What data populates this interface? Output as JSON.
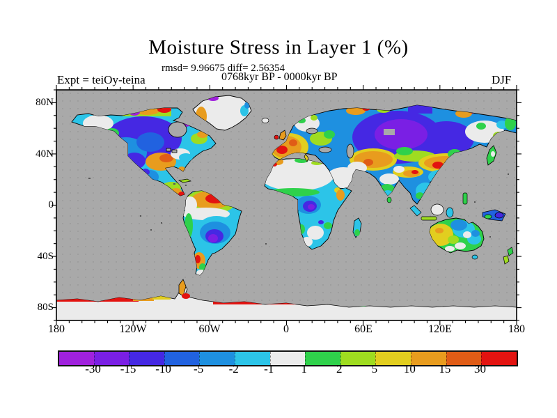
{
  "title": "Moisture Stress in Layer 1 (%)",
  "stats_line": "rmsd= 9.96675 diff= 2.56354",
  "period_line": "0768kyr BP - 0000kyr BP",
  "experiment_label": "Expt = teiOy-teina",
  "season_label": "DJF",
  "map": {
    "ocean_color": "#a9a9a9",
    "ice_color": "#ebebeb",
    "coastline_color": "#000000"
  },
  "axes": {
    "lat_labels": [
      "80N",
      "40N",
      "0",
      "40S",
      "80S"
    ],
    "lon_labels": [
      "180",
      "120W",
      "60W",
      "0",
      "60E",
      "120E",
      "180"
    ]
  },
  "colorbar": {
    "labels": [
      "-30",
      "-15",
      "-10",
      "-5",
      "-2",
      "-1",
      "1",
      "2",
      "5",
      "10",
      "15",
      "30"
    ],
    "colors": [
      "#a021dd",
      "#7a1fe4",
      "#4528e3",
      "#2162e0",
      "#1e90e0",
      "#2cc4e8",
      "#ebebeb",
      "#2fd14b",
      "#9fdc20",
      "#e2ce1f",
      "#e89c1e",
      "#e05c16",
      "#e31310"
    ]
  },
  "chart_data": {
    "type": "heatmap",
    "subtype": "filled-contour-world-map",
    "title": "Moisture Stress in Layer 1 (%)",
    "rmsd": 9.96675,
    "diff": 2.56354,
    "period": "0768kyr BP - 0000kyr BP",
    "experiment": "Expt = teiOy-teina",
    "season": "DJF",
    "x": {
      "label": "longitude",
      "range": [
        -180,
        180
      ],
      "tick_labels": [
        "180",
        "120W",
        "60W",
        "0",
        "60E",
        "120E",
        "180"
      ],
      "minor_tick_deg": 10
    },
    "y": {
      "label": "latitude",
      "range": [
        -90,
        90
      ],
      "tick_labels": [
        "80N",
        "40N",
        "0",
        "40S",
        "80S"
      ],
      "minor_tick_deg": 10
    },
    "contour_levels": [
      -30,
      -15,
      -10,
      -5,
      -2,
      -1,
      1,
      2,
      5,
      10,
      15,
      30
    ],
    "palette": [
      "#a021dd",
      "#7a1fe4",
      "#4528e3",
      "#2162e0",
      "#1e90e0",
      "#2cc4e8",
      "#ebebeb",
      "#2fd14b",
      "#9fdc20",
      "#e2ce1f",
      "#e89c1e",
      "#e05c16",
      "#e31310"
    ],
    "legend_position": "bottom",
    "ocean_masked_color": "#a9a9a9",
    "regions_read_from_figure": [
      {
        "region": "central Canada / Siberia",
        "value": "strong negative (-10 to -30, purple)"
      },
      {
        "region": "eastern-central USA",
        "value": "positive (5 to 15, orange)"
      },
      {
        "region": "western Europe",
        "value": "positive (10 to 30, orange/red)"
      },
      {
        "region": "Kazakhstan to Mongolia band",
        "value": "positive (5 to 30, yellow-orange-red)"
      },
      {
        "region": "northern South America",
        "value": "positive (10 to 30, orange/red core)"
      },
      {
        "region": "southeastern South America",
        "value": "negative (-5 to -15, blue/purple)"
      },
      {
        "region": "central Africa (Congo)",
        "value": "negative (-5 to -15, blue/purple)"
      },
      {
        "region": "Sahara / Arabia / Greenland interior",
        "value": "near zero (-1 to 1, white)"
      },
      {
        "region": "western Australia",
        "value": "positive (2 to 10, yellow)"
      },
      {
        "region": "eastern Australia",
        "value": "negative (-2 to -10, cyan/blue)"
      },
      {
        "region": "Antarctic coastal fringe",
        "value": "strong positive (15 to 30+, red band)"
      }
    ]
  }
}
